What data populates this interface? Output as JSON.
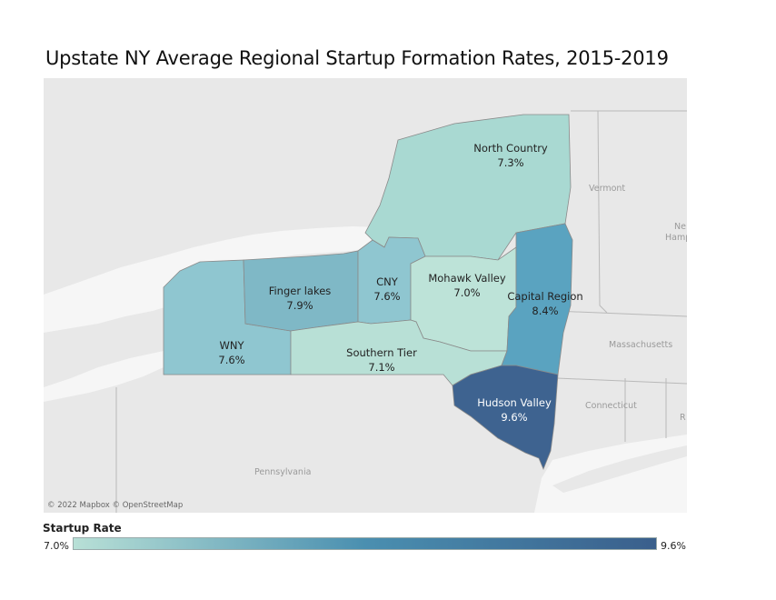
{
  "title": "Upstate NY Average Regional Startup Formation Rates, 2015-2019",
  "attribution": "© 2022 Mapbox © OpenStreetMap",
  "legend": {
    "title": "Startup Rate",
    "min": "7.0%",
    "max": "9.6%",
    "color_low": "#b8e0d6",
    "color_high": "#3a5f8c"
  },
  "background_labels": {
    "vermont": "Vermont",
    "new_hampshire_1": "Ne",
    "new_hampshire_2": "Hamp",
    "massachusetts": "Massachusetts",
    "connecticut": "Connecticut",
    "ri": "R",
    "pennsylvania": "Pennsylvania"
  },
  "regions": [
    {
      "id": "north-country",
      "name": "North Country",
      "rate": "7.3%",
      "color": "#a9d9d2"
    },
    {
      "id": "wny",
      "name": "WNY",
      "rate": "7.6%",
      "color": "#8fc6d0"
    },
    {
      "id": "finger-lakes",
      "name": "Finger lakes",
      "rate": "7.9%",
      "color": "#7fb8c6"
    },
    {
      "id": "cny",
      "name": "CNY",
      "rate": "7.6%",
      "color": "#8fc6d0"
    },
    {
      "id": "mohawk-valley",
      "name": "Mohawk Valley",
      "rate": "7.0%",
      "color": "#bde3d8"
    },
    {
      "id": "southern-tier",
      "name": "Southern Tier",
      "rate": "7.1%",
      "color": "#b8e0d6"
    },
    {
      "id": "capital-region",
      "name": "Capital Region",
      "rate": "8.4%",
      "color": "#5aa3c0"
    },
    {
      "id": "hudson-valley",
      "name": "Hudson Valley",
      "rate": "9.6%",
      "color": "#3e6390"
    }
  ]
}
